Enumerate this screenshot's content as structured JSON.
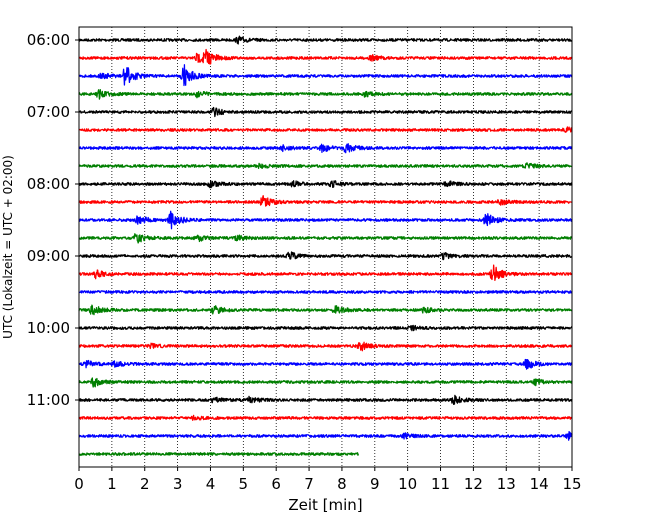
{
  "chart_data": {
    "type": "line",
    "subtype": "helicorder-seismogram",
    "title": "",
    "xlabel": "Zeit  [min]",
    "ylabel": "UTC (Lokalzeit = UTC + 02:00)",
    "xlim": [
      0,
      15
    ],
    "x_ticks": [
      0,
      1,
      2,
      3,
      4,
      5,
      6,
      7,
      8,
      9,
      10,
      11,
      12,
      13,
      14,
      15
    ],
    "x_tick_labels": [
      "0",
      "1",
      "2",
      "3",
      "4",
      "5",
      "6",
      "7",
      "8",
      "9",
      "10",
      "11",
      "12",
      "13",
      "14",
      "15"
    ],
    "y_tick_labels": [
      "06:00",
      "07:00",
      "08:00",
      "09:00",
      "10:00",
      "11:00"
    ],
    "rows_per_hour": 4,
    "minutes_per_row": 15,
    "vertical_grid": "dotted",
    "color_cycle": [
      "#000000",
      "#ff0000",
      "#0000ff",
      "#007f00"
    ],
    "rows": [
      {
        "start": "06:00",
        "color": "#000000",
        "end_min": 15,
        "events": [
          {
            "t": 4.85,
            "amp": 0.35
          }
        ]
      },
      {
        "start": "06:15",
        "color": "#ff0000",
        "end_min": 15,
        "events": [
          {
            "t": 3.85,
            "amp": 0.9
          },
          {
            "t": 3.6,
            "amp": 0.5
          },
          {
            "t": 8.9,
            "amp": 0.3
          }
        ]
      },
      {
        "start": "06:30",
        "color": "#0000ff",
        "end_min": 15,
        "events": [
          {
            "t": 1.4,
            "amp": 1.2
          },
          {
            "t": 3.2,
            "amp": 1.15
          },
          {
            "t": 0.7,
            "amp": 0.3
          }
        ]
      },
      {
        "start": "06:45",
        "color": "#007f00",
        "end_min": 15,
        "events": [
          {
            "t": 0.6,
            "amp": 0.5
          },
          {
            "t": 3.6,
            "amp": 0.3
          },
          {
            "t": 8.7,
            "amp": 0.25
          }
        ]
      },
      {
        "start": "07:00",
        "color": "#000000",
        "end_min": 15,
        "events": [
          {
            "t": 4.1,
            "amp": 0.45
          }
        ]
      },
      {
        "start": "07:15",
        "color": "#ff0000",
        "end_min": 15,
        "events": [
          {
            "t": 14.8,
            "amp": 0.3
          }
        ]
      },
      {
        "start": "07:30",
        "color": "#0000ff",
        "end_min": 15,
        "events": [
          {
            "t": 8.1,
            "amp": 0.6
          },
          {
            "t": 7.4,
            "amp": 0.4
          },
          {
            "t": 6.2,
            "amp": 0.25
          }
        ]
      },
      {
        "start": "07:45",
        "color": "#007f00",
        "end_min": 15,
        "events": [
          {
            "t": 13.6,
            "amp": 0.3
          },
          {
            "t": 5.5,
            "amp": 0.2
          }
        ]
      },
      {
        "start": "08:00",
        "color": "#000000",
        "end_min": 15,
        "events": [
          {
            "t": 4.0,
            "amp": 0.35
          },
          {
            "t": 6.5,
            "amp": 0.3
          },
          {
            "t": 7.7,
            "amp": 0.35
          },
          {
            "t": 11.2,
            "amp": 0.35
          }
        ]
      },
      {
        "start": "08:15",
        "color": "#ff0000",
        "end_min": 15,
        "events": [
          {
            "t": 5.6,
            "amp": 0.6
          },
          {
            "t": 12.8,
            "amp": 0.3
          }
        ]
      },
      {
        "start": "08:30",
        "color": "#0000ff",
        "end_min": 15,
        "events": [
          {
            "t": 2.8,
            "amp": 1.0
          },
          {
            "t": 1.8,
            "amp": 0.5
          },
          {
            "t": 12.4,
            "amp": 0.75
          }
        ]
      },
      {
        "start": "08:45",
        "color": "#007f00",
        "end_min": 15,
        "events": [
          {
            "t": 1.75,
            "amp": 0.6
          },
          {
            "t": 3.6,
            "amp": 0.35
          },
          {
            "t": 4.8,
            "amp": 0.25
          }
        ]
      },
      {
        "start": "09:00",
        "color": "#000000",
        "end_min": 15,
        "events": [
          {
            "t": 6.4,
            "amp": 0.4
          },
          {
            "t": 11.1,
            "amp": 0.3
          }
        ]
      },
      {
        "start": "09:15",
        "color": "#ff0000",
        "end_min": 15,
        "events": [
          {
            "t": 0.5,
            "amp": 0.4
          },
          {
            "t": 12.6,
            "amp": 0.95
          }
        ]
      },
      {
        "start": "09:30",
        "color": "#0000ff",
        "end_min": 15,
        "events": []
      },
      {
        "start": "09:45",
        "color": "#007f00",
        "end_min": 15,
        "events": [
          {
            "t": 0.4,
            "amp": 0.55
          },
          {
            "t": 4.1,
            "amp": 0.5
          },
          {
            "t": 7.8,
            "amp": 0.5
          },
          {
            "t": 10.5,
            "amp": 0.3
          }
        ]
      },
      {
        "start": "10:00",
        "color": "#000000",
        "end_min": 15,
        "events": [
          {
            "t": 10.1,
            "amp": 0.25
          }
        ]
      },
      {
        "start": "10:15",
        "color": "#ff0000",
        "end_min": 15,
        "events": [
          {
            "t": 8.55,
            "amp": 0.55
          },
          {
            "t": 2.2,
            "amp": 0.2
          }
        ]
      },
      {
        "start": "10:30",
        "color": "#0000ff",
        "end_min": 15,
        "events": [
          {
            "t": 0.2,
            "amp": 0.4
          },
          {
            "t": 13.6,
            "amp": 0.6
          },
          {
            "t": 1.1,
            "amp": 0.3
          }
        ]
      },
      {
        "start": "10:45",
        "color": "#007f00",
        "end_min": 15,
        "events": [
          {
            "t": 0.45,
            "amp": 0.5
          },
          {
            "t": 13.9,
            "amp": 0.3
          }
        ]
      },
      {
        "start": "11:00",
        "color": "#000000",
        "end_min": 15,
        "events": [
          {
            "t": 5.2,
            "amp": 0.35
          },
          {
            "t": 11.4,
            "amp": 0.45
          },
          {
            "t": 4.1,
            "amp": 0.25
          }
        ]
      },
      {
        "start": "11:15",
        "color": "#ff0000",
        "end_min": 15,
        "events": [
          {
            "t": 3.5,
            "amp": 0.2
          }
        ]
      },
      {
        "start": "11:30",
        "color": "#0000ff",
        "end_min": 15,
        "events": [
          {
            "t": 14.9,
            "amp": 0.35
          },
          {
            "t": 9.9,
            "amp": 0.25
          }
        ]
      },
      {
        "start": "11:45",
        "color": "#007f00",
        "end_min": 8.5,
        "events": []
      }
    ]
  }
}
